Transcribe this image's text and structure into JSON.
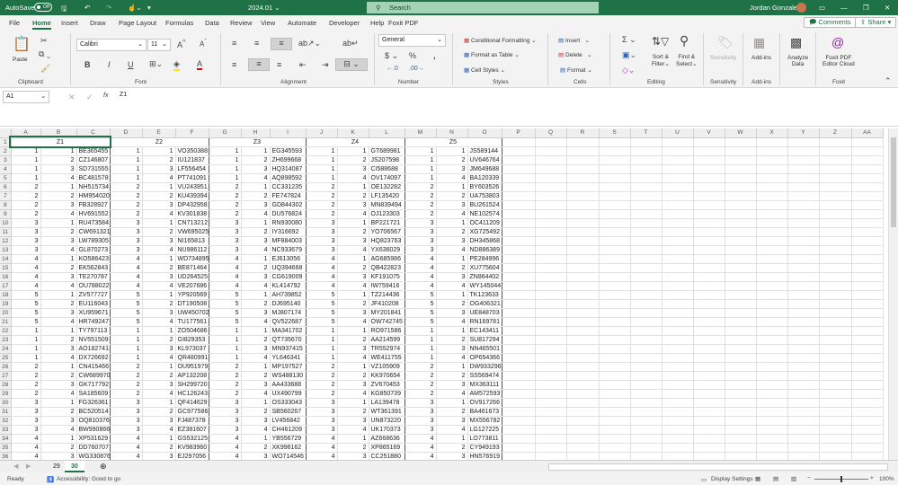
{
  "titlebar": {
    "autosave": "AutoSave",
    "autosave_state": "Off",
    "filename": "2024.01 ⌄",
    "search": "Search",
    "user": "Jordan Gonzalez"
  },
  "menu": {
    "tabs": [
      "File",
      "Home",
      "Insert",
      "Draw",
      "Page Layout",
      "Formulas",
      "Data",
      "Review",
      "View",
      "Automate",
      "Developer",
      "Help",
      "Foxit PDF"
    ],
    "active": "Home",
    "comments": "Comments",
    "share": "Share"
  },
  "ribbon": {
    "clipboard": {
      "paste": "Paste",
      "label": "Clipboard"
    },
    "font": {
      "name": "Calibri",
      "size": "11",
      "label": "Font",
      "bold": "B",
      "italic": "I",
      "underline": "U"
    },
    "alignment": {
      "label": "Alignment"
    },
    "number": {
      "format": "General",
      "label": "Number"
    },
    "styles": {
      "conditional": "Conditional Formatting",
      "table": "Format as Table",
      "cell": "Cell Styles",
      "label": "Styles"
    },
    "cells": {
      "insert": "Insert",
      "delete": "Delete",
      "format": "Format",
      "label": "Cells"
    },
    "editing": {
      "sort": "Sort &",
      "sort2": "Filter",
      "find": "Find &",
      "find2": "Select",
      "label": "Editing"
    },
    "sensitivity": {
      "btn": "Sensitivity",
      "label": "Sensitivity"
    },
    "addins": {
      "btn": "Add-ins",
      "label": "Add-ins"
    },
    "analyze": {
      "btn": "Analyze",
      "btn2": "Data"
    },
    "foxit": {
      "btn": "Foxit PDF",
      "btn2": "Editor Cloud",
      "label": "Foxit"
    },
    "accent": "#1f7246"
  },
  "formula_bar": {
    "name_box": "A1",
    "fx": "fx",
    "content": "Z1"
  },
  "sheet": {
    "columns": [
      "A",
      "B",
      "C",
      "D",
      "E",
      "F",
      "G",
      "H",
      "I",
      "J",
      "K",
      "L",
      "M",
      "N",
      "O",
      "P",
      "Q",
      "R",
      "S",
      "T",
      "U",
      "V",
      "W",
      "X",
      "Y",
      "Z",
      "AA"
    ],
    "rows_shown": 36,
    "block_headers": [
      "Z1",
      "Z2",
      "Z3",
      "Z4",
      "Z5"
    ],
    "row_group": [
      1,
      1,
      1,
      1,
      2,
      2,
      2,
      2,
      3,
      3,
      3,
      3,
      4,
      4,
      4,
      4,
      5,
      5,
      5,
      5,
      1,
      1,
      1,
      1,
      2,
      2,
      2,
      2,
      3,
      3,
      3,
      3,
      4,
      4,
      4
    ],
    "row_seq": [
      1,
      2,
      3,
      4,
      1,
      2,
      3,
      4,
      1,
      2,
      3,
      4,
      1,
      2,
      3,
      4,
      1,
      2,
      3,
      4,
      1,
      2,
      3,
      4,
      1,
      2,
      3,
      4,
      1,
      2,
      3,
      4,
      1,
      2,
      3
    ],
    "codes": [
      [
        "BE365455",
        "CZ146807",
        "SD731555",
        "BC481578",
        "NH515734",
        "HM954020",
        "FB328927",
        "HV691552",
        "RU473584",
        "CW691321",
        "LW789305",
        "GL870273",
        "KO586423",
        "EK562843",
        "TE270787",
        "OU788022",
        "ZV577727",
        "EU116043",
        "XU959671",
        "HR749247",
        "TY797113",
        "NV551509",
        "AO182741",
        "DX726692",
        "CN415466",
        "CW689970",
        "GK717792",
        "SA185609",
        "FG326361",
        "BC520514",
        "OQ810376",
        "BW990866",
        "XP531629",
        "DD760707",
        "WG330876"
      ],
      [
        "VO350388",
        "IU121837",
        "LF556454",
        "PT741091",
        "VU243951",
        "KU439394",
        "DP432958",
        "KV301838",
        "CN713212",
        "VW695025",
        "NI165813",
        "NU986112",
        "WD734895",
        "BE871464",
        "UD264525",
        "VE207686",
        "YP920569",
        "DT190508",
        "UW450702",
        "TU177561",
        "ZO504686",
        "GI829353",
        "KL973037",
        "QR480991",
        "OU951979",
        "AP132208",
        "SH299720",
        "HC126243",
        "QF414629",
        "GC977586",
        "FJ487378",
        "EZ381607",
        "GS532125",
        "KV983960",
        "EJ297056"
      ],
      [
        "EG345593",
        "ZH699668",
        "HQ314087",
        "AQ898592",
        "CC331235",
        "FE747824",
        "GD844302",
        "DU576824",
        "RN930080",
        "IY316692",
        "MF884003",
        "NC933679",
        "EJ613056",
        "UQ394668",
        "CG619009",
        "KL414792",
        "AH739852",
        "DJ695140",
        "MJ807174",
        "QV522687",
        "MA341702",
        "QT735670",
        "MN937415",
        "YL646341",
        "MP197527",
        "WS488130",
        "AA433688",
        "UX490799",
        "OS333043",
        "SB560267",
        "LV456842",
        "CH461209",
        "YB556729",
        "XK996162",
        "WO714546"
      ],
      [
        "GT689981",
        "JS207598",
        "CI588688",
        "OV174097",
        "OE132282",
        "LF135420",
        "MN839494",
        "OJ123303",
        "BP221721",
        "YO706567",
        "HQ823763",
        "YX636029",
        "AG685986",
        "QB422823",
        "KF191075",
        "IW759416",
        "TZ214436",
        "JF410208",
        "MY201841",
        "OW742745",
        "RO971586",
        "AA214599",
        "TR552974",
        "WE411755",
        "VZ105909",
        "KK970654",
        "ZV670453",
        "KG850739",
        "LA139478",
        "WT361391",
        "UN873220",
        "UK170373",
        "AZ668636",
        "XP865169",
        "CC251880"
      ],
      [
        "JS589144",
        "UV646764",
        "JM649688",
        "BA120339",
        "BY603526",
        "UA753803",
        "BU261524",
        "NE102574",
        "OC411209",
        "XG725492",
        "DH345868",
        "ND886389",
        "PE284996",
        "XU775604",
        "ZN864402",
        "WY145044",
        "TK123633",
        "OG406321",
        "UE848703",
        "RN169781",
        "EC143411",
        "SU817294",
        "NN465501",
        "OP654366",
        "DW933296",
        "SS569474",
        "MX363111",
        "AM572593",
        "OV917266",
        "BA461673",
        "MX556782",
        "LG127225",
        "LO773811",
        "CY949193",
        "HN576919"
      ]
    ]
  },
  "sheet_tabs": {
    "tabs": [
      "29",
      "30"
    ],
    "active": "30"
  },
  "status": {
    "ready": "Ready",
    "accessibility": "Accessibility: Good to go",
    "display": "Display Settings",
    "zoom": "100%"
  }
}
